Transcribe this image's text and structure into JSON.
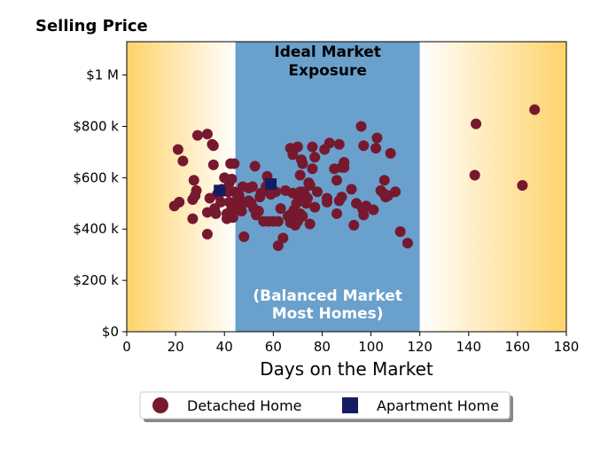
{
  "chart_data": {
    "type": "scatter",
    "title": "Selling Price",
    "xlabel": "Days on the Market",
    "ylabel": "",
    "xlim": [
      0,
      180
    ],
    "ylim": [
      0,
      1130000
    ],
    "x_ticks": [
      0,
      20,
      40,
      60,
      80,
      100,
      120,
      140,
      160,
      180
    ],
    "x_tick_labels": [
      "0",
      "20",
      "40",
      "60",
      "80",
      "100",
      "120",
      "140",
      "160",
      "180"
    ],
    "y_ticks": [
      0,
      200000,
      400000,
      600000,
      800000,
      1000000
    ],
    "y_tick_labels": [
      "$0",
      "$200 k",
      "$400 k",
      "$600 k",
      "$800 k",
      "$1 M"
    ],
    "grid": false,
    "legend_position": "bottom-center",
    "zones": {
      "ideal_band": [
        44.5,
        120
      ],
      "ideal_color": "#6aa0cc",
      "edge_color": "#ffd36b",
      "top_label_lines": [
        "Ideal Market",
        "Exposure"
      ],
      "bottom_label_lines": [
        "(Balanced Market",
        "Most Homes)"
      ]
    },
    "series": [
      {
        "name": "Detached Home",
        "marker": "circle",
        "color": "#76192f",
        "points": [
          [
            19.5,
            490000
          ],
          [
            21,
            710000
          ],
          [
            21.5,
            505000
          ],
          [
            23,
            665000
          ],
          [
            27,
            440000
          ],
          [
            27,
            515000
          ],
          [
            27.5,
            590000
          ],
          [
            28,
            530000
          ],
          [
            28.5,
            550000
          ],
          [
            29,
            765000
          ],
          [
            33,
            465000
          ],
          [
            33,
            380000
          ],
          [
            33,
            770000
          ],
          [
            34,
            520000
          ],
          [
            35,
            730000
          ],
          [
            35.5,
            650000
          ],
          [
            35.5,
            725000
          ],
          [
            36,
            480000
          ],
          [
            36.5,
            460000
          ],
          [
            37,
            535000
          ],
          [
            38,
            540000
          ],
          [
            38.5,
            505000
          ],
          [
            39,
            555000
          ],
          [
            40,
            600000
          ],
          [
            41,
            440000
          ],
          [
            41,
            460000
          ],
          [
            41.5,
            545000
          ],
          [
            42,
            505000
          ],
          [
            42,
            580000
          ],
          [
            42.5,
            655000
          ],
          [
            43,
            595000
          ],
          [
            43,
            480000
          ],
          [
            43.5,
            445000
          ],
          [
            44,
            655000
          ],
          [
            44,
            470000
          ],
          [
            44,
            545000
          ],
          [
            45,
            510000
          ],
          [
            45.5,
            525000
          ],
          [
            46,
            530000
          ],
          [
            46.5,
            495000
          ],
          [
            47,
            470000
          ],
          [
            47.5,
            565000
          ],
          [
            48,
            370000
          ],
          [
            49,
            505000
          ],
          [
            50,
            560000
          ],
          [
            50,
            510000
          ],
          [
            51,
            500000
          ],
          [
            51.5,
            565000
          ],
          [
            52,
            480000
          ],
          [
            52.5,
            645000
          ],
          [
            53,
            455000
          ],
          [
            54,
            470000
          ],
          [
            54.5,
            525000
          ],
          [
            55,
            540000
          ],
          [
            56,
            430000
          ],
          [
            57,
            565000
          ],
          [
            57.5,
            605000
          ],
          [
            58,
            430000
          ],
          [
            58,
            580000
          ],
          [
            59,
            535000
          ],
          [
            60,
            430000
          ],
          [
            61,
            545000
          ],
          [
            62,
            335000
          ],
          [
            62,
            430000
          ],
          [
            63,
            480000
          ],
          [
            64,
            365000
          ],
          [
            65,
            550000
          ],
          [
            66,
            450000
          ],
          [
            67,
            715000
          ],
          [
            67,
            425000
          ],
          [
            67.5,
            460000
          ],
          [
            68,
            690000
          ],
          [
            68,
            540000
          ],
          [
            68,
            440000
          ],
          [
            68.5,
            475000
          ],
          [
            69,
            415000
          ],
          [
            69.5,
            500000
          ],
          [
            70,
            430000
          ],
          [
            70,
            720000
          ],
          [
            70.5,
            520000
          ],
          [
            71,
            545000
          ],
          [
            71,
            460000
          ],
          [
            71,
            610000
          ],
          [
            71.5,
            670000
          ],
          [
            72,
            655000
          ],
          [
            72,
            450000
          ],
          [
            72.5,
            545000
          ],
          [
            73,
            530000
          ],
          [
            73.5,
            500000
          ],
          [
            74,
            520000
          ],
          [
            74.5,
            580000
          ],
          [
            75,
            570000
          ],
          [
            75,
            420000
          ],
          [
            76,
            635000
          ],
          [
            76,
            720000
          ],
          [
            77,
            485000
          ],
          [
            77,
            680000
          ],
          [
            78,
            545000
          ],
          [
            81,
            710000
          ],
          [
            82,
            520000
          ],
          [
            82,
            505000
          ],
          [
            83,
            735000
          ],
          [
            85,
            635000
          ],
          [
            86,
            460000
          ],
          [
            86,
            590000
          ],
          [
            87,
            730000
          ],
          [
            87,
            510000
          ],
          [
            88,
            640000
          ],
          [
            88,
            525000
          ],
          [
            89,
            660000
          ],
          [
            89,
            640000
          ],
          [
            92,
            555000
          ],
          [
            93,
            415000
          ],
          [
            94,
            500000
          ],
          [
            96,
            800000
          ],
          [
            96.5,
            480000
          ],
          [
            97,
            725000
          ],
          [
            97,
            455000
          ],
          [
            98,
            490000
          ],
          [
            101,
            475000
          ],
          [
            102,
            715000
          ],
          [
            102.5,
            755000
          ],
          [
            104,
            550000
          ],
          [
            105,
            540000
          ],
          [
            105.5,
            590000
          ],
          [
            106,
            525000
          ],
          [
            107,
            530000
          ],
          [
            108,
            695000
          ],
          [
            110,
            545000
          ],
          [
            112,
            390000
          ],
          [
            115,
            345000
          ],
          [
            143,
            810000
          ],
          [
            142.5,
            610000
          ],
          [
            162,
            570000
          ],
          [
            167,
            865000
          ]
        ]
      },
      {
        "name": "Apartment Home",
        "marker": "square",
        "color": "#141c63",
        "points": [
          [
            38,
            550000
          ],
          [
            59,
            575000
          ]
        ]
      }
    ]
  }
}
